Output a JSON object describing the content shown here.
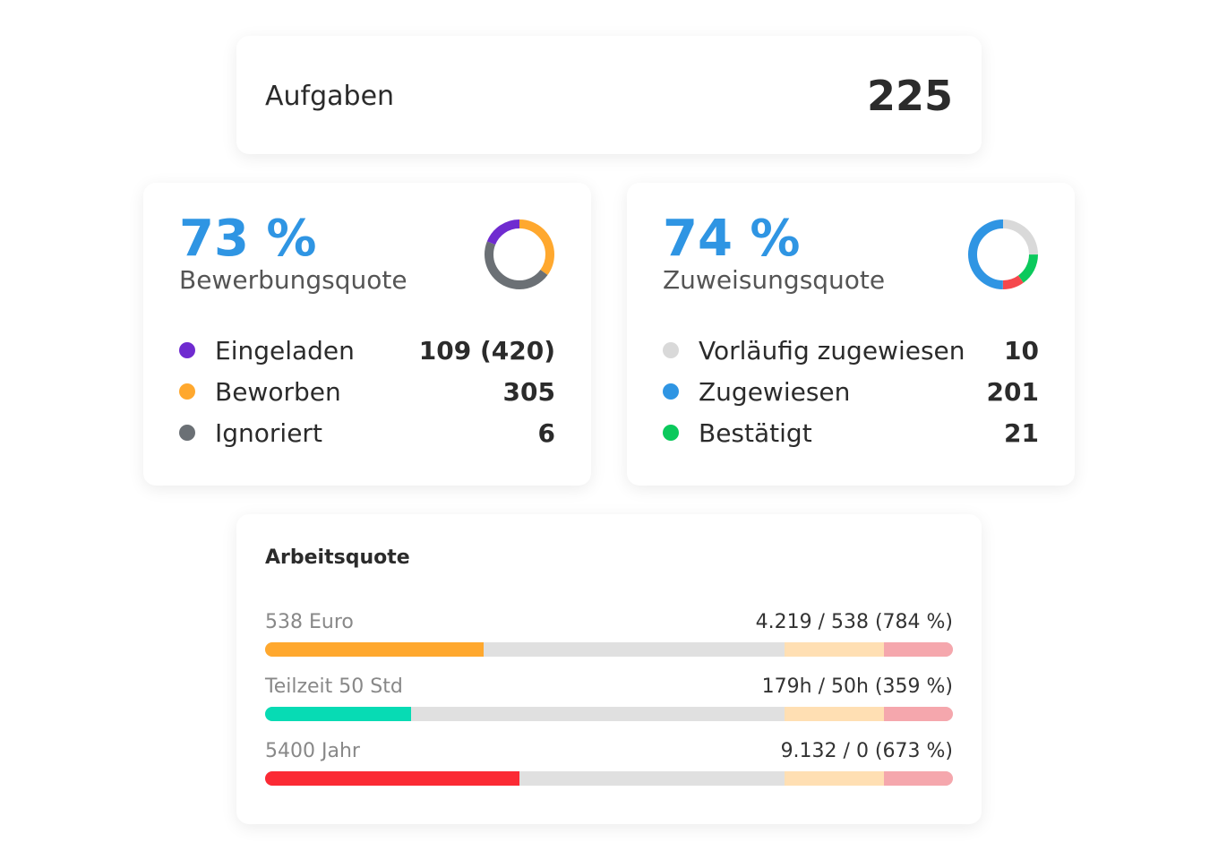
{
  "tasks": {
    "label": "Aufgaben",
    "value": "225"
  },
  "application": {
    "percent": "73 %",
    "label": "Bewerbungsquote",
    "items": [
      {
        "label": "Eingeladen",
        "value": "109 (420)",
        "color": "#6f2bd0",
        "share": 0.19
      },
      {
        "label": "Beworben",
        "value": "305",
        "color": "#ffa82e",
        "share": 0.35
      },
      {
        "label": "Ignoriert",
        "value": "6",
        "color": "#6b7075",
        "share": 0.46
      }
    ],
    "donut_order": [
      1,
      2,
      0
    ]
  },
  "assignment": {
    "percent": "74 %",
    "label": "Zuweisungsquote",
    "items": [
      {
        "label": "Vorläufig zugewiesen",
        "value": "10",
        "color": "#d9d9d9",
        "share": 0.25
      },
      {
        "label": "Zugewiesen",
        "value": "201",
        "color": "#2f95e3",
        "share": 0.5
      },
      {
        "label": "Bestätigt",
        "value": "21",
        "color": "#0bc95c",
        "share": 0.15
      }
    ],
    "extra_segment": {
      "color": "#f5484d",
      "share": 0.1
    },
    "donut_order": [
      0,
      2,
      "extra",
      1
    ]
  },
  "work": {
    "title": "Arbeitsquote",
    "bars": [
      {
        "label": "538 Euro",
        "value": "4.219 / 538 (784 %)",
        "fill": 0.318,
        "color": "#ffa82e"
      },
      {
        "label": "Teilzeit 50 Std",
        "value": "179h / 50h (359 %)",
        "fill": 0.212,
        "color": "#07dbb4"
      },
      {
        "label": "5400 Jahr",
        "value": "9.132 / 0 (673 %)",
        "fill": 0.37,
        "color": "#fb2a34"
      }
    ],
    "zones": {
      "warning_color": "#ffdfb3",
      "danger_color": "#f5a7ad"
    }
  }
}
